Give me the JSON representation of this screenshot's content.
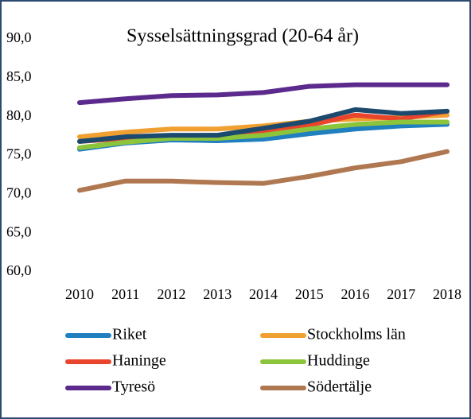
{
  "chart_data": {
    "type": "line",
    "title": "Sysselsättningsgrad (20-64 år)",
    "categories": [
      "2010",
      "2011",
      "2012",
      "2013",
      "2014",
      "2015",
      "2016",
      "2017",
      "2018"
    ],
    "series": [
      {
        "name": "Riket",
        "color": "#1f7fbf",
        "values": [
          75.8,
          76.6,
          77.0,
          76.9,
          77.1,
          77.8,
          78.4,
          78.8,
          79.0
        ]
      },
      {
        "name": "Stockholms län",
        "color": "#f0a030",
        "values": [
          77.4,
          78.0,
          78.4,
          78.4,
          78.8,
          79.4,
          79.7,
          79.9,
          80.2
        ]
      },
      {
        "name": "Haninge",
        "color": "#e8452c",
        "values": [
          76.8,
          77.2,
          77.5,
          77.6,
          78.1,
          78.9,
          80.2,
          79.7,
          80.7
        ]
      },
      {
        "name": "Huddinge",
        "color": "#8cc43c",
        "values": [
          76.0,
          76.7,
          77.2,
          77.2,
          77.6,
          78.4,
          79.0,
          79.3,
          79.3
        ]
      },
      {
        "name": "Tyresö",
        "color": "#5b2a8c",
        "values": [
          81.8,
          82.3,
          82.7,
          82.8,
          83.1,
          83.9,
          84.1,
          84.1,
          84.1
        ]
      },
      {
        "name": "Södertälje",
        "color": "#b07850",
        "values": [
          70.5,
          71.7,
          71.7,
          71.5,
          71.4,
          72.3,
          73.4,
          74.2,
          75.5
        ]
      },
      {
        "color": "#1c4a6e",
        "values": [
          76.8,
          77.4,
          77.6,
          77.6,
          78.5,
          79.4,
          80.9,
          80.4,
          80.7
        ]
      }
    ],
    "ylim": [
      60,
      90
    ],
    "yticks": [
      {
        "value": 60,
        "label": "60,0"
      },
      {
        "value": 65,
        "label": "65,0"
      },
      {
        "value": 70,
        "label": "70,0"
      },
      {
        "value": 75,
        "label": "75,0"
      },
      {
        "value": 80,
        "label": "80,0"
      },
      {
        "value": 85,
        "label": "85,0"
      },
      {
        "value": 90,
        "label": "90,0"
      }
    ],
    "grid": false
  }
}
